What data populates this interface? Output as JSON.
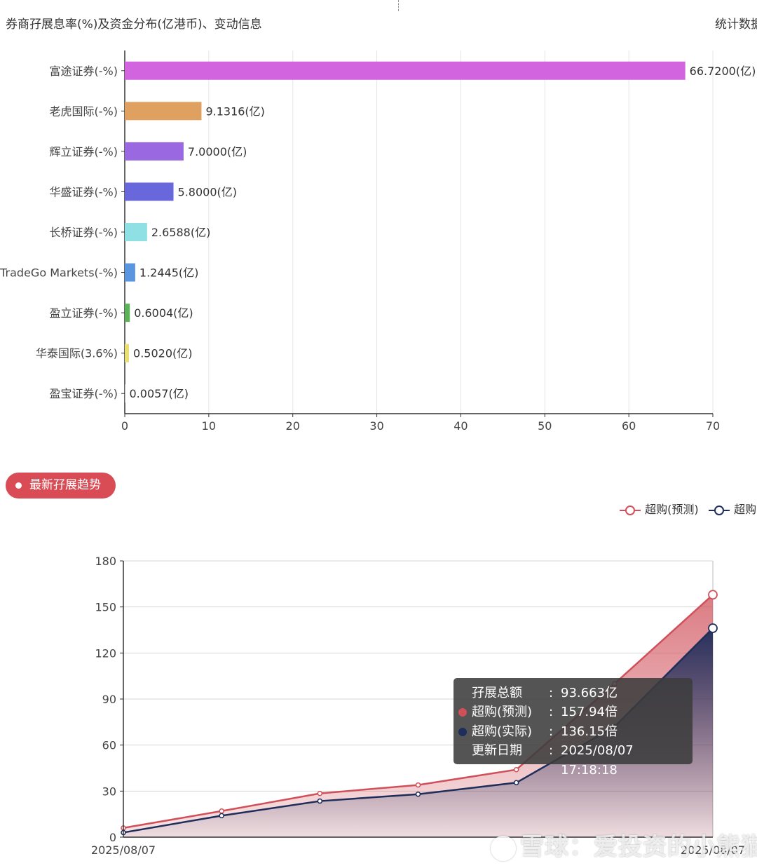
{
  "header": {
    "title": "券商孖展息率(%)及资金分布(亿港币)、变动信息",
    "right_text": "统计数据"
  },
  "section_button": {
    "label": "最新孖展趋势"
  },
  "chart_data": [
    {
      "type": "bar",
      "orientation": "horizontal",
      "title": "",
      "categories": [
        "富途证券(-%)",
        "老虎国际(-%)",
        "辉立证券(-%)",
        "华盛证券(-%)",
        "长桥证券(-%)",
        "TradeGo Markets(-%)",
        "盈立证券(-%)",
        "华泰国际(3.6%)",
        "盈宝证券(-%)"
      ],
      "values": [
        66.72,
        9.1316,
        7.0,
        5.8,
        2.6588,
        1.2445,
        0.6004,
        0.502,
        0.0057
      ],
      "value_labels": [
        "66.7200(亿)",
        "9.1316(亿)",
        "7.0000(亿)",
        "5.8000(亿)",
        "2.6588(亿)",
        "1.2445(亿)",
        "0.6004(亿)",
        "0.5020(亿)",
        "0.0057(亿)"
      ],
      "colors": [
        "#d264e0",
        "#e0a060",
        "#9a68e0",
        "#6868dc",
        "#8ee0e4",
        "#5a96e0",
        "#58b454",
        "#e8e070",
        "#d0d0d0"
      ],
      "xlim": [
        0,
        70
      ],
      "xticks": [
        0,
        10,
        20,
        30,
        40,
        50,
        60,
        70
      ],
      "grid": true
    },
    {
      "type": "area",
      "title": "",
      "x_labels": [
        "2025/08/07",
        "2025/08/07"
      ],
      "x_points": 7,
      "series": [
        {
          "name": "超购(预测)",
          "color": "#d0505a",
          "values": [
            6,
            17,
            28.5,
            34,
            44,
            100,
            157.94
          ]
        },
        {
          "name": "超购(实际)",
          "color": "#1e2d5a",
          "values": [
            3,
            14,
            23.5,
            28,
            35.5,
            72,
            136.15
          ]
        }
      ],
      "ylim": [
        0,
        180
      ],
      "yticks": [
        0,
        30,
        60,
        90,
        120,
        150,
        180
      ],
      "grid": true,
      "legend_position": "top-right",
      "tooltip": {
        "rows": [
          {
            "label": "孖展总额",
            "value": "93.663亿",
            "color": ""
          },
          {
            "label": "超购(预测)",
            "value": "157.94倍",
            "color": "#d0505a"
          },
          {
            "label": "超购(实际)",
            "value": "136.15倍",
            "color": "#1e2d5a"
          },
          {
            "label": "更新日期",
            "value": "2025/08/07 17:18:18",
            "color": ""
          }
        ]
      }
    }
  ],
  "watermark": {
    "text": "雪球：爱投资的小熊猫"
  }
}
